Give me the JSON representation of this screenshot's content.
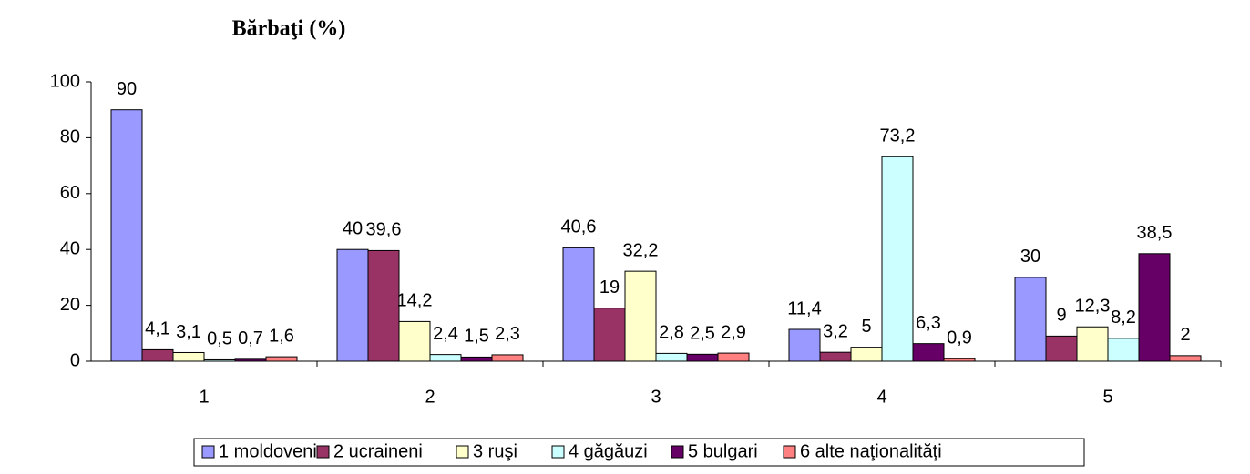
{
  "chart_data": {
    "type": "bar",
    "title": "Bărbaţi (%)",
    "categories": [
      "1",
      "2",
      "3",
      "4",
      "5"
    ],
    "ylim": [
      0,
      100
    ],
    "yticks": [
      0,
      20,
      40,
      60,
      80,
      100
    ],
    "grid": false,
    "legend": "bottom",
    "series": [
      {
        "name": "1 moldoveni",
        "color": "#9999ff",
        "values": [
          90,
          40,
          40.6,
          11.4,
          30
        ],
        "value_labels": [
          "90",
          "40",
          "40,6",
          "11,4",
          "30"
        ]
      },
      {
        "name": "2 ucraineni",
        "color": "#993366",
        "values": [
          4.1,
          39.6,
          19,
          3.2,
          9
        ],
        "value_labels": [
          "4,1",
          "39,6",
          "19",
          "3,2",
          "9"
        ]
      },
      {
        "name": "3 ruşi",
        "color": "#ffffcc",
        "values": [
          3.1,
          14.2,
          32.2,
          5,
          12.3
        ],
        "value_labels": [
          "3,1",
          "14,2",
          "32,2",
          "5",
          "12,3"
        ]
      },
      {
        "name": "4 găgăuzi",
        "color": "#ccffff",
        "values": [
          0.5,
          2.4,
          2.8,
          73.2,
          8.2
        ],
        "value_labels": [
          "0,5",
          "2,4",
          "2,8",
          "73,2",
          "8,2"
        ]
      },
      {
        "name": "5 bulgari",
        "color": "#660066",
        "values": [
          0.7,
          1.5,
          2.5,
          6.3,
          38.5
        ],
        "value_labels": [
          "0,7",
          "1,5",
          "2,5",
          "6,3",
          "38,5"
        ]
      },
      {
        "name": "6 alte naţionalităţi",
        "color": "#ff8080",
        "values": [
          1.6,
          2.3,
          2.9,
          0.9,
          2
        ],
        "value_labels": [
          "1,6",
          "2,3",
          "2,9",
          "0,9",
          "2"
        ]
      }
    ]
  }
}
